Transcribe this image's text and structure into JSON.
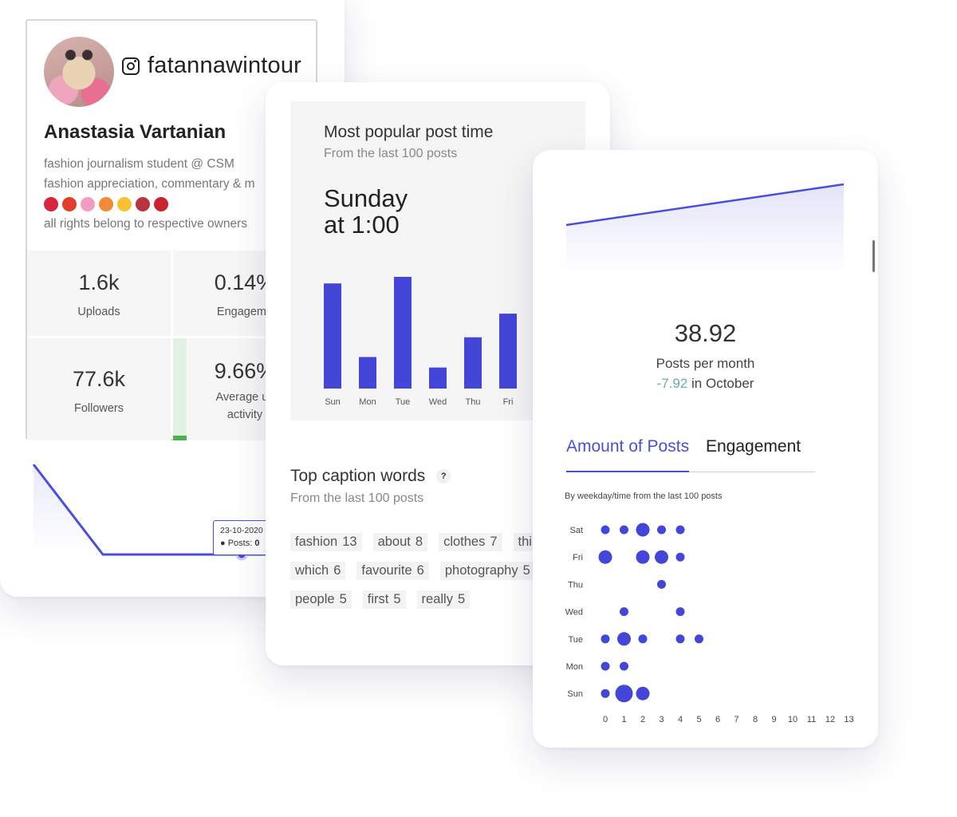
{
  "profile": {
    "handle": "fatannawintour",
    "full_name": "Anastasia Vartanian",
    "bio_lines": [
      "fashion journalism student @ CSM",
      "fashion appreciation, commentary & m",
      "all rights belong to respective owners"
    ],
    "emoji_colors": [
      "#d8263f",
      "#e33d2b",
      "#f39bc0",
      "#f28a35",
      "#f6c233",
      "#b8343f",
      "#c8232f"
    ],
    "stats": [
      {
        "value": "1.6k",
        "label": "Uploads"
      },
      {
        "value": "0.14%",
        "label": "Engageme"
      },
      {
        "value": "77.6k",
        "label": "Followers"
      },
      {
        "value": "9.66%",
        "label": "Average us",
        "label2": "activity"
      }
    ],
    "tooltip": {
      "date": "23-10-2020",
      "label": "Posts:",
      "value": "0"
    }
  },
  "post_time": {
    "title": "Most popular post time",
    "subtitle": "From the last 100 posts",
    "best_day": "Sunday",
    "best_time": "at 1:00"
  },
  "captions": {
    "title": "Top caption words",
    "help": "?",
    "subtitle": "From the last 100 posts",
    "rows": [
      [
        {
          "word": "fashion",
          "count": "13"
        },
        {
          "word": "about",
          "count": "8"
        },
        {
          "word": "clothes",
          "count": "7"
        },
        {
          "word": "thi",
          "count": ""
        }
      ],
      [
        {
          "word": "which",
          "count": "6"
        },
        {
          "word": "favourite",
          "count": "6"
        },
        {
          "word": "photography",
          "count": "5"
        }
      ],
      [
        {
          "word": "people",
          "count": "5"
        },
        {
          "word": "first",
          "count": "5"
        },
        {
          "word": "really",
          "count": "5"
        }
      ]
    ]
  },
  "posts_per_month": {
    "value": "38.92",
    "label": "Posts per month",
    "delta": "-7.92",
    "delta_suffix": " in October"
  },
  "tabs": {
    "active": "Amount of Posts",
    "inactive": "Engagement"
  },
  "dot_caption": "By weekday/time from the last 100 posts",
  "colors": {
    "accent": "#4a4fd8",
    "bar": "#4346d6",
    "green": "#4caf50",
    "negative": "#6aa8b8"
  },
  "chart_data": [
    {
      "type": "bar",
      "categories": [
        "Sun",
        "Mon",
        "Tue",
        "Wed",
        "Thu",
        "Fri"
      ],
      "values": [
        16,
        4.8,
        17,
        3.2,
        7.8,
        11.4
      ]
    },
    {
      "type": "scatter",
      "y_categories": [
        "Sat",
        "Fri",
        "Thu",
        "Wed",
        "Tue",
        "Mon",
        "Sun"
      ],
      "x_ticks": [
        "0",
        "1",
        "2",
        "3",
        "4",
        "5",
        "6",
        "7",
        "8",
        "9",
        "10",
        "11",
        "12",
        "13"
      ],
      "points": [
        {
          "day": "Sat",
          "hour": 0,
          "size": 1
        },
        {
          "day": "Sat",
          "hour": 1,
          "size": 1
        },
        {
          "day": "Sat",
          "hour": 2,
          "size": 2
        },
        {
          "day": "Sat",
          "hour": 3,
          "size": 1
        },
        {
          "day": "Sat",
          "hour": 4,
          "size": 1
        },
        {
          "day": "Fri",
          "hour": 0,
          "size": 2
        },
        {
          "day": "Fri",
          "hour": 2,
          "size": 2
        },
        {
          "day": "Fri",
          "hour": 3,
          "size": 2
        },
        {
          "day": "Fri",
          "hour": 4,
          "size": 1
        },
        {
          "day": "Thu",
          "hour": 3,
          "size": 1
        },
        {
          "day": "Wed",
          "hour": 1,
          "size": 1
        },
        {
          "day": "Wed",
          "hour": 4,
          "size": 1
        },
        {
          "day": "Tue",
          "hour": 0,
          "size": 1
        },
        {
          "day": "Tue",
          "hour": 1,
          "size": 2
        },
        {
          "day": "Tue",
          "hour": 2,
          "size": 1
        },
        {
          "day": "Tue",
          "hour": 4,
          "size": 1
        },
        {
          "day": "Tue",
          "hour": 5,
          "size": 1
        },
        {
          "day": "Mon",
          "hour": 0,
          "size": 1
        },
        {
          "day": "Mon",
          "hour": 1,
          "size": 1
        },
        {
          "day": "Sun",
          "hour": 0,
          "size": 1
        },
        {
          "day": "Sun",
          "hour": 1,
          "size": 3
        },
        {
          "day": "Sun",
          "hour": 2,
          "size": 2
        }
      ]
    },
    {
      "type": "line",
      "x": [
        0,
        1
      ],
      "values": [
        0,
        1
      ]
    },
    {
      "type": "line",
      "x": [
        0,
        1,
        2
      ],
      "values": [
        4,
        0,
        0
      ]
    }
  ]
}
